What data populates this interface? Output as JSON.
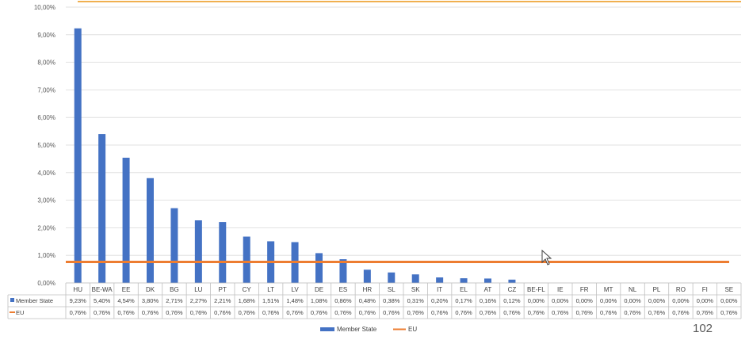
{
  "chart_data": {
    "type": "bar",
    "ylim": [
      0,
      10
    ],
    "yticks": [
      "0,00%",
      "1,00%",
      "2,00%",
      "3,00%",
      "4,00%",
      "5,00%",
      "6,00%",
      "7,00%",
      "8,00%",
      "9,00%",
      "10,00%"
    ],
    "categories": [
      "HU",
      "BE-WA",
      "EE",
      "DK",
      "BG",
      "LU",
      "PT",
      "CY",
      "LT",
      "LV",
      "DE",
      "ES",
      "HR",
      "SL",
      "SK",
      "IT",
      "EL",
      "AT",
      "CZ",
      "BE-FL",
      "IE",
      "FR",
      "MT",
      "NL",
      "PL",
      "RO",
      "FI",
      "SE"
    ],
    "series": [
      {
        "name": "Member State",
        "type": "bar",
        "color": "#4472C4",
        "values": [
          9.23,
          5.4,
          4.54,
          3.8,
          2.71,
          2.27,
          2.21,
          1.68,
          1.51,
          1.48,
          1.08,
          0.86,
          0.48,
          0.38,
          0.31,
          0.2,
          0.17,
          0.16,
          0.12,
          0.0,
          0.0,
          0.0,
          0.0,
          0.0,
          0.0,
          0.0,
          0.0,
          0.0
        ],
        "labels": [
          "9,23%",
          "5,40%",
          "4,54%",
          "3,80%",
          "2,71%",
          "2,27%",
          "2,21%",
          "1,68%",
          "1,51%",
          "1,48%",
          "1,08%",
          "0,86%",
          "0,48%",
          "0,38%",
          "0,31%",
          "0,20%",
          "0,17%",
          "0,16%",
          "0,12%",
          "0,00%",
          "0,00%",
          "0,00%",
          "0,00%",
          "0,00%",
          "0,00%",
          "0,00%",
          "0,00%",
          "0,00%"
        ]
      },
      {
        "name": "EU",
        "type": "line",
        "color": "#ED7D31",
        "values": [
          0.76,
          0.76,
          0.76,
          0.76,
          0.76,
          0.76,
          0.76,
          0.76,
          0.76,
          0.76,
          0.76,
          0.76,
          0.76,
          0.76,
          0.76,
          0.76,
          0.76,
          0.76,
          0.76,
          0.76,
          0.76,
          0.76,
          0.76,
          0.76,
          0.76,
          0.76,
          0.76,
          0.76
        ],
        "labels": [
          "0,76%",
          "0,76%",
          "0,76%",
          "0,76%",
          "0,76%",
          "0,76%",
          "0,76%",
          "0,76%",
          "0,76%",
          "0,76%",
          "0,76%",
          "0,76%",
          "0,76%",
          "0,76%",
          "0,76%",
          "0,76%",
          "0,76%",
          "0,76%",
          "0,76%",
          "0,76%",
          "0,76%",
          "0,76%",
          "0,76%",
          "0,76%",
          "0,76%",
          "0,76%",
          "0,76%",
          "0,76%"
        ]
      }
    ],
    "grid": true,
    "legend": "bottom-center",
    "data_table": true
  },
  "slide": {
    "number": "102",
    "accent_color": "#F0B050"
  }
}
